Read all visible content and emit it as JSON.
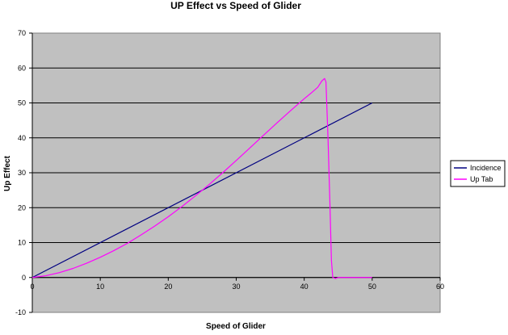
{
  "chart_data": {
    "type": "line",
    "title": "UP Effect vs Speed of Glider",
    "xlabel": "Speed of Glider",
    "ylabel": "Up Effect",
    "xlim": [
      0,
      60
    ],
    "ylim": [
      -10,
      70
    ],
    "x_ticks": [
      "0",
      "10",
      "20",
      "30",
      "40",
      "50",
      "60"
    ],
    "y_ticks": [
      "-10",
      "0",
      "10",
      "20",
      "30",
      "40",
      "50",
      "60",
      "70"
    ],
    "grid": true,
    "legend_position": "right",
    "plot_background": "#c0c0c0",
    "series": [
      {
        "name": "Incidence",
        "color": "#000080",
        "points": [
          [
            0,
            0
          ],
          [
            50,
            50
          ]
        ]
      },
      {
        "name": "Up Tab",
        "color": "#ff00ff",
        "points": [
          [
            0,
            0
          ],
          [
            2,
            0.5
          ],
          [
            4,
            1.4
          ],
          [
            6,
            2.6
          ],
          [
            8,
            4.1
          ],
          [
            10,
            5.8
          ],
          [
            12,
            7.7
          ],
          [
            14,
            9.8
          ],
          [
            16,
            12.2
          ],
          [
            18,
            14.7
          ],
          [
            20,
            17.4
          ],
          [
            22,
            20.3
          ],
          [
            24,
            23.4
          ],
          [
            26,
            26.6
          ],
          [
            28,
            30.0
          ],
          [
            30,
            33.5
          ],
          [
            32,
            37.1
          ],
          [
            34,
            40.7
          ],
          [
            36,
            44.3
          ],
          [
            38,
            47.8
          ],
          [
            40,
            51.2
          ],
          [
            41,
            52.8
          ],
          [
            42,
            54.5
          ],
          [
            42.6,
            56.3
          ],
          [
            43,
            57
          ],
          [
            43.2,
            56
          ],
          [
            43.5,
            40
          ],
          [
            43.8,
            20
          ],
          [
            44.0,
            5
          ],
          [
            44.2,
            0
          ],
          [
            44.6,
            -0.3
          ],
          [
            45,
            0
          ],
          [
            46,
            0
          ],
          [
            50,
            0
          ]
        ]
      }
    ]
  }
}
